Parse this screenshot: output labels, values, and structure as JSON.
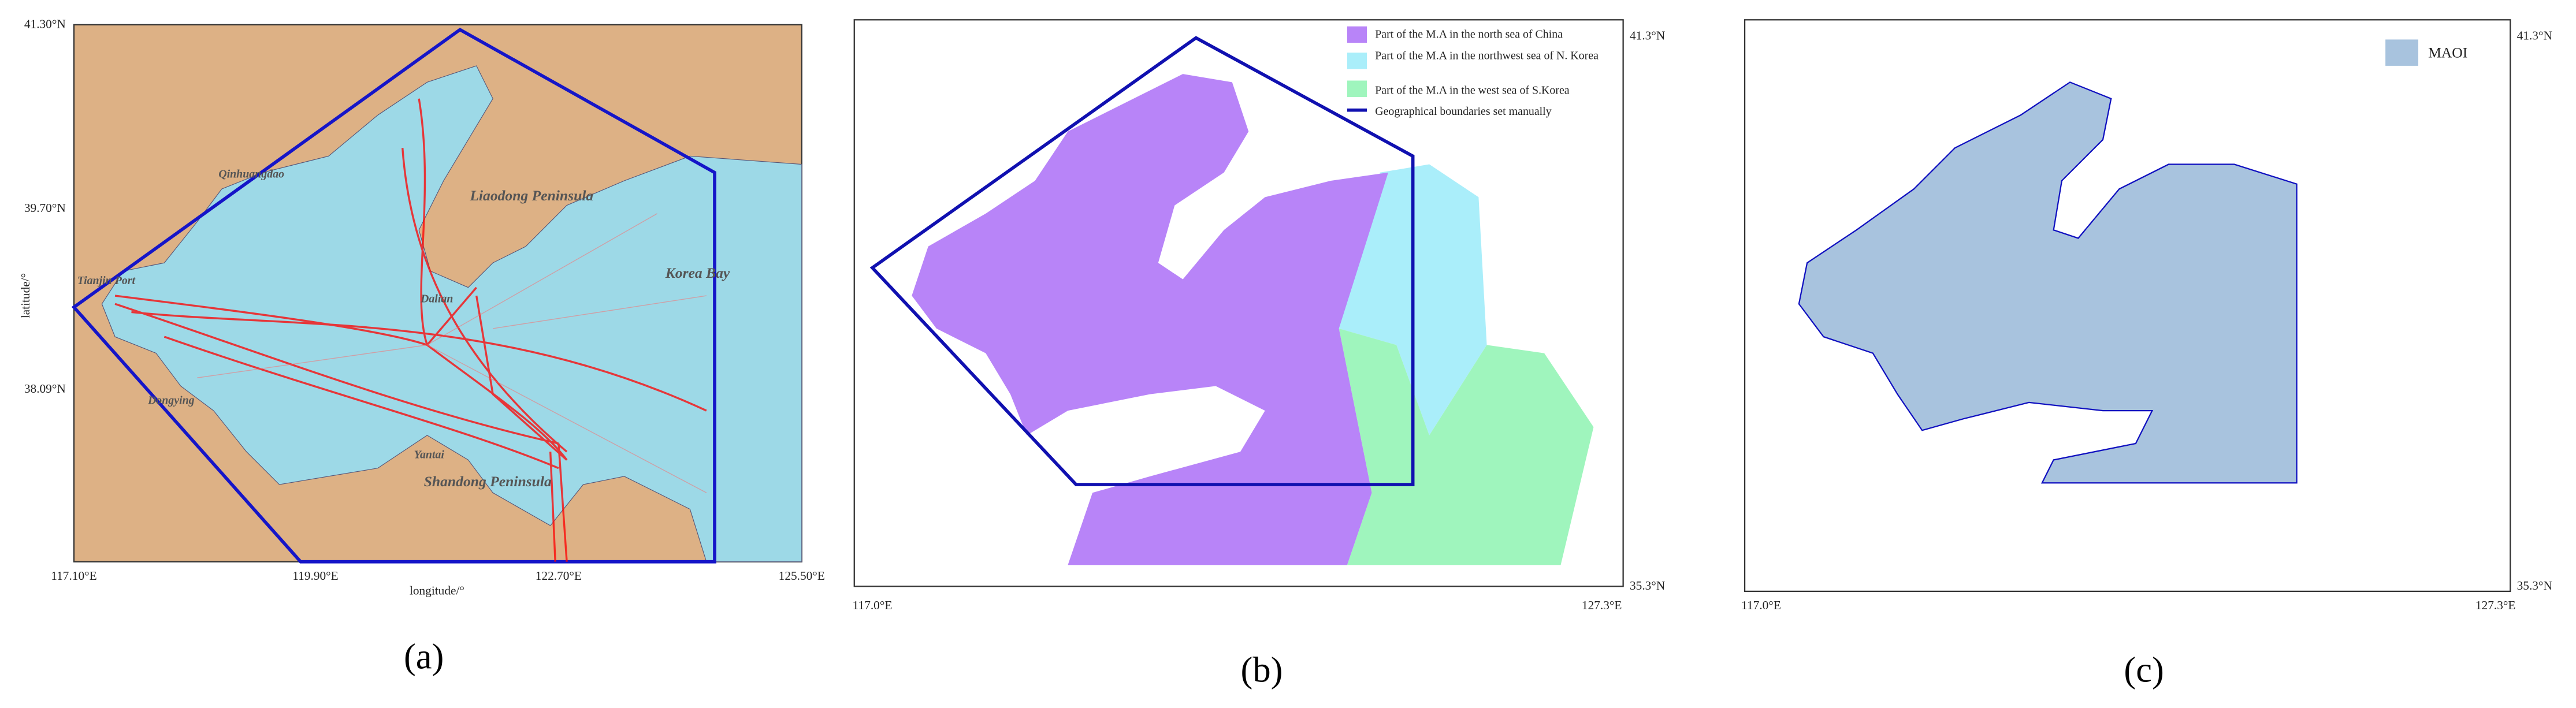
{
  "panels": [
    {
      "caption": "(a)",
      "lat_labels": [
        "41.30°N",
        "39.70°N",
        "38.09°N"
      ],
      "lon_labels": [
        "117.10°E",
        "119.90°E",
        "122.70°E",
        "125.50°E"
      ],
      "y_axis_label": "latitude/°",
      "x_axis_label": "longitude/°",
      "places": [
        "Qinhuangdao",
        "Liaodong Peninsula",
        "Tianjin Port",
        "Dalian",
        "Korea Bay",
        "Dongying",
        "Yantai",
        "Shandong Peninsula"
      ]
    },
    {
      "caption": "(b)",
      "lat_labels": [
        "41.3°N",
        "35.3°N"
      ],
      "lon_labels": [
        "117.0°E",
        "127.3°E"
      ],
      "legend": [
        "Part of the M.A in the north sea of China",
        "Part of the M.A in the northwest sea of N. Korea",
        "Part of the M.A in the west sea of S.Korea",
        "Geographical boundaries set manually"
      ]
    },
    {
      "caption": "(c)",
      "lat_labels": [
        "41.3°N",
        "35.3°N"
      ],
      "lon_labels": [
        "117.0°E",
        "127.3°E"
      ],
      "legend": [
        "MAOI"
      ]
    }
  ]
}
